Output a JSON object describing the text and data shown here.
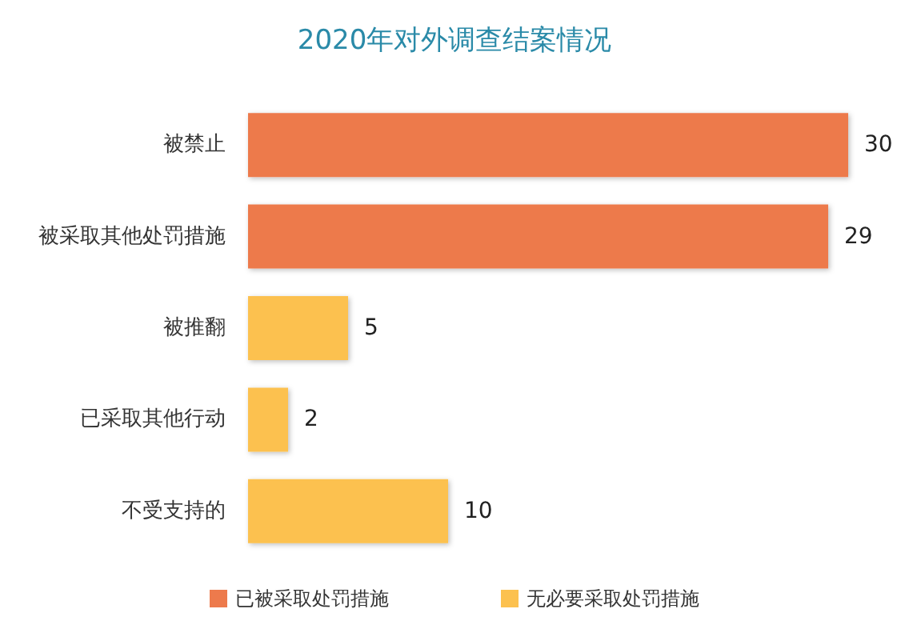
{
  "chart_data": {
    "type": "bar",
    "orientation": "horizontal",
    "title": "2020年对外调查结案情况",
    "categories": [
      "被禁止",
      "被采取其他处罚措施",
      "被推翻",
      "已采取其他行动",
      "不受支持的"
    ],
    "series": [
      {
        "name": "已被采取处罚措施",
        "color": "#ed7a4c",
        "values": [
          30,
          29,
          null,
          null,
          null
        ]
      },
      {
        "name": "无必要采取处罚措施",
        "color": "#fcc14f",
        "values": [
          null,
          null,
          5,
          2,
          10
        ]
      }
    ],
    "data_labels": true,
    "legend": "bottom",
    "grid": false
  }
}
